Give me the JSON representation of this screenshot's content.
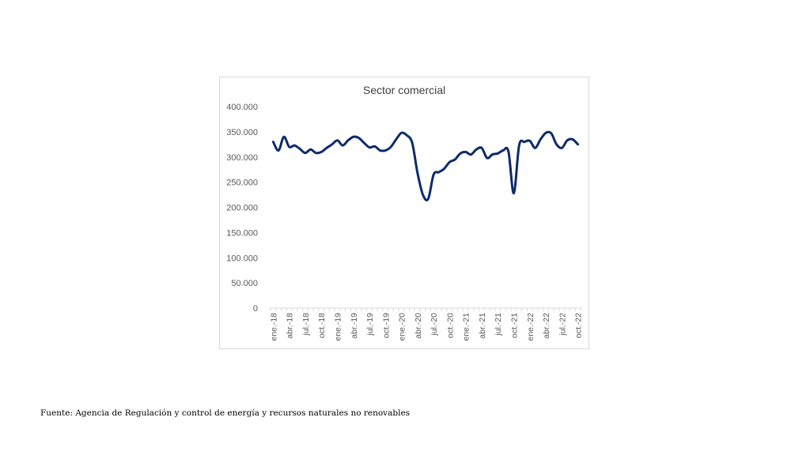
{
  "source_note": "Fuente: Agencia de Regulación y control de energía y recursos naturales no renovables",
  "chart_data": {
    "type": "line",
    "title": "Sector comercial",
    "xlabel": "",
    "ylabel": "",
    "ylim": [
      0,
      400000
    ],
    "yticks": [
      "0",
      "50.000",
      "100.000",
      "150.000",
      "200.000",
      "250.000",
      "300.000",
      "350.000",
      "400.000"
    ],
    "grid": false,
    "legend": "none",
    "line_color": "#0d2a6b",
    "x": [
      "ene.-18",
      "feb.-18",
      "mar.-18",
      "abr.-18",
      "may.-18",
      "jun.-18",
      "jul.-18",
      "ago.-18",
      "sep.-18",
      "oct.-18",
      "nov.-18",
      "dic.-18",
      "ene.-19",
      "feb.-19",
      "mar.-19",
      "abr.-19",
      "may.-19",
      "jun.-19",
      "jul.-19",
      "ago.-19",
      "sep.-19",
      "oct.-19",
      "nov.-19",
      "dic.-19",
      "ene.-20",
      "feb.-20",
      "mar.-20",
      "abr.-20",
      "may.-20",
      "jun.-20",
      "jul.-20",
      "ago.-20",
      "sep.-20",
      "oct.-20",
      "nov.-20",
      "dic.-20",
      "ene.-21",
      "feb.-21",
      "mar.-21",
      "abr.-21",
      "may.-21",
      "jun.-21",
      "jul.-21",
      "ago.-21",
      "sep.-21",
      "oct.-21",
      "nov.-21",
      "dic.-21",
      "ene.-22",
      "feb.-22",
      "mar.-22",
      "abr.-22",
      "may.-22",
      "jun.-22",
      "jul.-22",
      "ago.-22",
      "sep.-22",
      "oct.-22"
    ],
    "xtick_labels": [
      "ene.-18",
      "abr.-18",
      "jul.-18",
      "oct.-18",
      "ene.-19",
      "abr.-19",
      "jul.-19",
      "oct.-19",
      "ene.-20",
      "abr.-20",
      "jul.-20",
      "oct.-20",
      "ene.-21",
      "abr.-21",
      "jul.-21",
      "oct.-21",
      "ene.-22",
      "abr.-22",
      "jul.-22",
      "oct.-22"
    ],
    "series": [
      {
        "values": [
          330000,
          313000,
          340000,
          320000,
          323000,
          316000,
          308000,
          315000,
          308000,
          310000,
          318000,
          325000,
          333000,
          323000,
          333000,
          340000,
          338000,
          328000,
          319000,
          321000,
          313000,
          313000,
          320000,
          335000,
          348000,
          343000,
          328000,
          268000,
          225000,
          217000,
          265000,
          270000,
          277000,
          290000,
          295000,
          307000,
          310000,
          305000,
          315000,
          318000,
          298000,
          305000,
          307000,
          313000,
          311000,
          228000,
          323000,
          330000,
          332000,
          318000,
          335000,
          348000,
          347000,
          325000,
          318000,
          333000,
          335000,
          325000
        ]
      }
    ]
  }
}
